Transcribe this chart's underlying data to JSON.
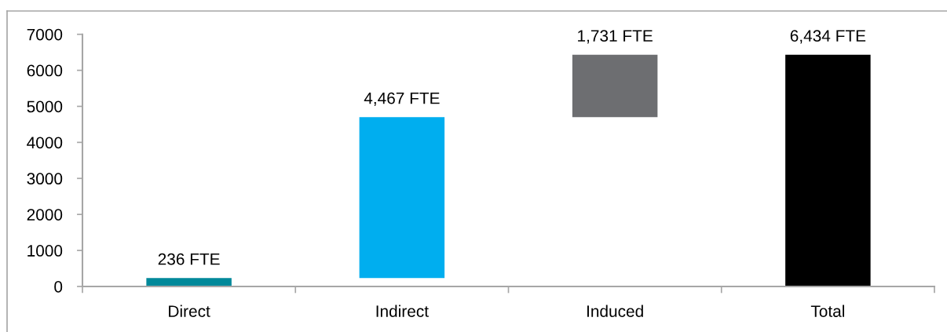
{
  "chart_data": {
    "type": "bar",
    "categories": [
      "Direct",
      "Indirect",
      "Induced",
      "Total"
    ],
    "values": [
      236,
      4467,
      1731,
      6434
    ],
    "base": [
      0,
      236,
      4703,
      0
    ],
    "colors": [
      "#00899a",
      "#00aeef",
      "#6d6e71",
      "#000000"
    ],
    "value_labels": [
      "236 FTE",
      "4,467 FTE",
      "1,731 FTE",
      "6,434 FTE"
    ],
    "ylim": [
      0,
      7000
    ],
    "yticks": [
      0,
      1000,
      2000,
      3000,
      4000,
      5000,
      6000,
      7000
    ]
  }
}
